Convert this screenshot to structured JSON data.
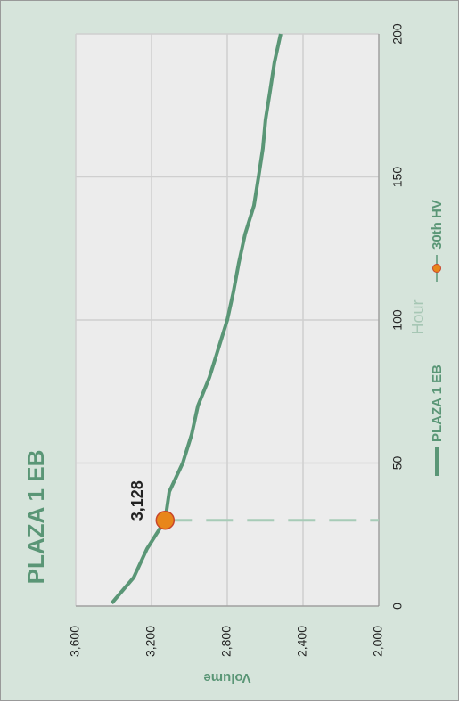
{
  "chart_data": {
    "type": "line",
    "title": "PLAZA 1 EB",
    "x_label": "Hour",
    "y_label": "Volume",
    "series": [
      {
        "name": "PLAZA 1 EB",
        "color": "#5a9676",
        "x": [
          1,
          10,
          20,
          30,
          40,
          50,
          60,
          70,
          80,
          90,
          100,
          110,
          120,
          130,
          140,
          150,
          160,
          170,
          180,
          190,
          200
        ],
        "values": [
          3410,
          3294,
          3224,
          3128,
          3106,
          3035,
          2988,
          2955,
          2894,
          2847,
          2800,
          2767,
          2739,
          2706,
          2659,
          2635,
          2612,
          2598,
          2574,
          2551,
          2518
        ]
      },
      {
        "name": "30th HV",
        "color": "#e8861a",
        "x": [
          30
        ],
        "values": [
          3128
        ],
        "value_labels": [
          "3,128"
        ]
      }
    ],
    "xlim": [
      0,
      200
    ],
    "xticks": [
      0,
      50,
      100,
      150,
      200
    ],
    "ylim": [
      2000,
      3600
    ],
    "yticks": [
      {
        "value": 2000,
        "label": "2,000"
      },
      {
        "value": 2400,
        "label": "2,400"
      },
      {
        "value": 2800,
        "label": "2,800"
      },
      {
        "value": 3200,
        "label": "3,200"
      },
      {
        "value": 3600,
        "label": "3,600"
      }
    ],
    "grid": true
  }
}
